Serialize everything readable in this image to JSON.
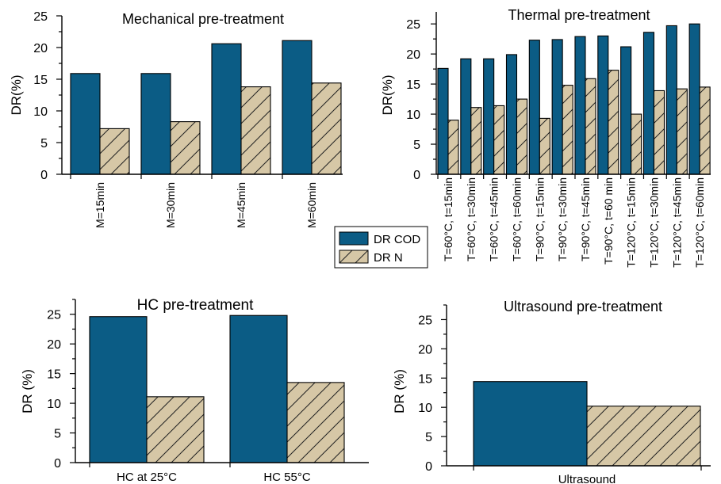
{
  "colors": {
    "dr_cod": "#0B5C85",
    "dr_n": "#D6C7A6",
    "hatch": "#222222"
  },
  "legend": {
    "items": [
      {
        "label": "DR COD",
        "color": "#0B5C85",
        "hatched": false
      },
      {
        "label": "DR N",
        "color": "#D6C7A6",
        "hatched": true
      }
    ]
  },
  "chart_data": [
    {
      "type": "bar",
      "title": "Mechanical pre-treatment",
      "ylabel": "DR(%)",
      "xlabel": "",
      "ylim": [
        0,
        25
      ],
      "yticks": [
        0,
        5,
        10,
        15,
        20,
        25
      ],
      "categories": [
        "M=15min",
        "M=30min",
        "M=45min",
        "M=60min"
      ],
      "series": [
        {
          "name": "DR COD",
          "values": [
            15.9,
            15.9,
            20.6,
            21.1
          ]
        },
        {
          "name": "DR N",
          "values": [
            7.2,
            8.3,
            13.8,
            14.4
          ]
        }
      ]
    },
    {
      "type": "bar",
      "title": "Thermal pre-treatment",
      "ylabel": "DR(%)",
      "xlabel": "",
      "ylim": [
        0,
        27
      ],
      "yticks": [
        0,
        5,
        10,
        15,
        20,
        25
      ],
      "categories": [
        "T=60°C, t=15min",
        "T=60°C, t=30min",
        "T=60°C, t=45min",
        "T=60°C, t=60min",
        "T=90°C, t=15min",
        "T=90°C, t=30min",
        "T=90°C, t=45min",
        "T=90°C, t=60 min",
        "T=120°C, t=15min",
        "T=120°C, t=30min",
        "T=120°C, t=45min",
        "T=120°C, t=60min"
      ],
      "series": [
        {
          "name": "DR COD",
          "values": [
            17.6,
            19.2,
            19.2,
            19.9,
            22.3,
            22.4,
            22.9,
            23.0,
            21.2,
            23.6,
            24.7,
            25.0
          ]
        },
        {
          "name": "DR N",
          "values": [
            9.0,
            11.1,
            11.4,
            12.5,
            9.3,
            14.8,
            15.9,
            17.3,
            10.0,
            13.9,
            14.2,
            14.5
          ]
        }
      ]
    },
    {
      "type": "bar",
      "title": "HC pre-treatment",
      "ylabel": "DR (%)",
      "xlabel": "",
      "ylim": [
        0,
        27.5
      ],
      "yticks": [
        0,
        5,
        10,
        15,
        20,
        25
      ],
      "categories": [
        "HC  at 25°C",
        "HC 55°C"
      ],
      "series": [
        {
          "name": "DR COD",
          "values": [
            24.6,
            24.8
          ]
        },
        {
          "name": "DR N",
          "values": [
            11.1,
            13.5
          ]
        }
      ]
    },
    {
      "type": "bar",
      "title": "Ultrasound pre-treatment",
      "ylabel": "DR (%)",
      "xlabel": "",
      "ylim": [
        0,
        27.5
      ],
      "yticks": [
        0,
        5,
        10,
        15,
        20,
        25
      ],
      "categories": [
        "Ultrasound"
      ],
      "series": [
        {
          "name": "DR COD",
          "values": [
            14.4
          ]
        },
        {
          "name": "DR N",
          "values": [
            10.2
          ]
        }
      ]
    }
  ]
}
